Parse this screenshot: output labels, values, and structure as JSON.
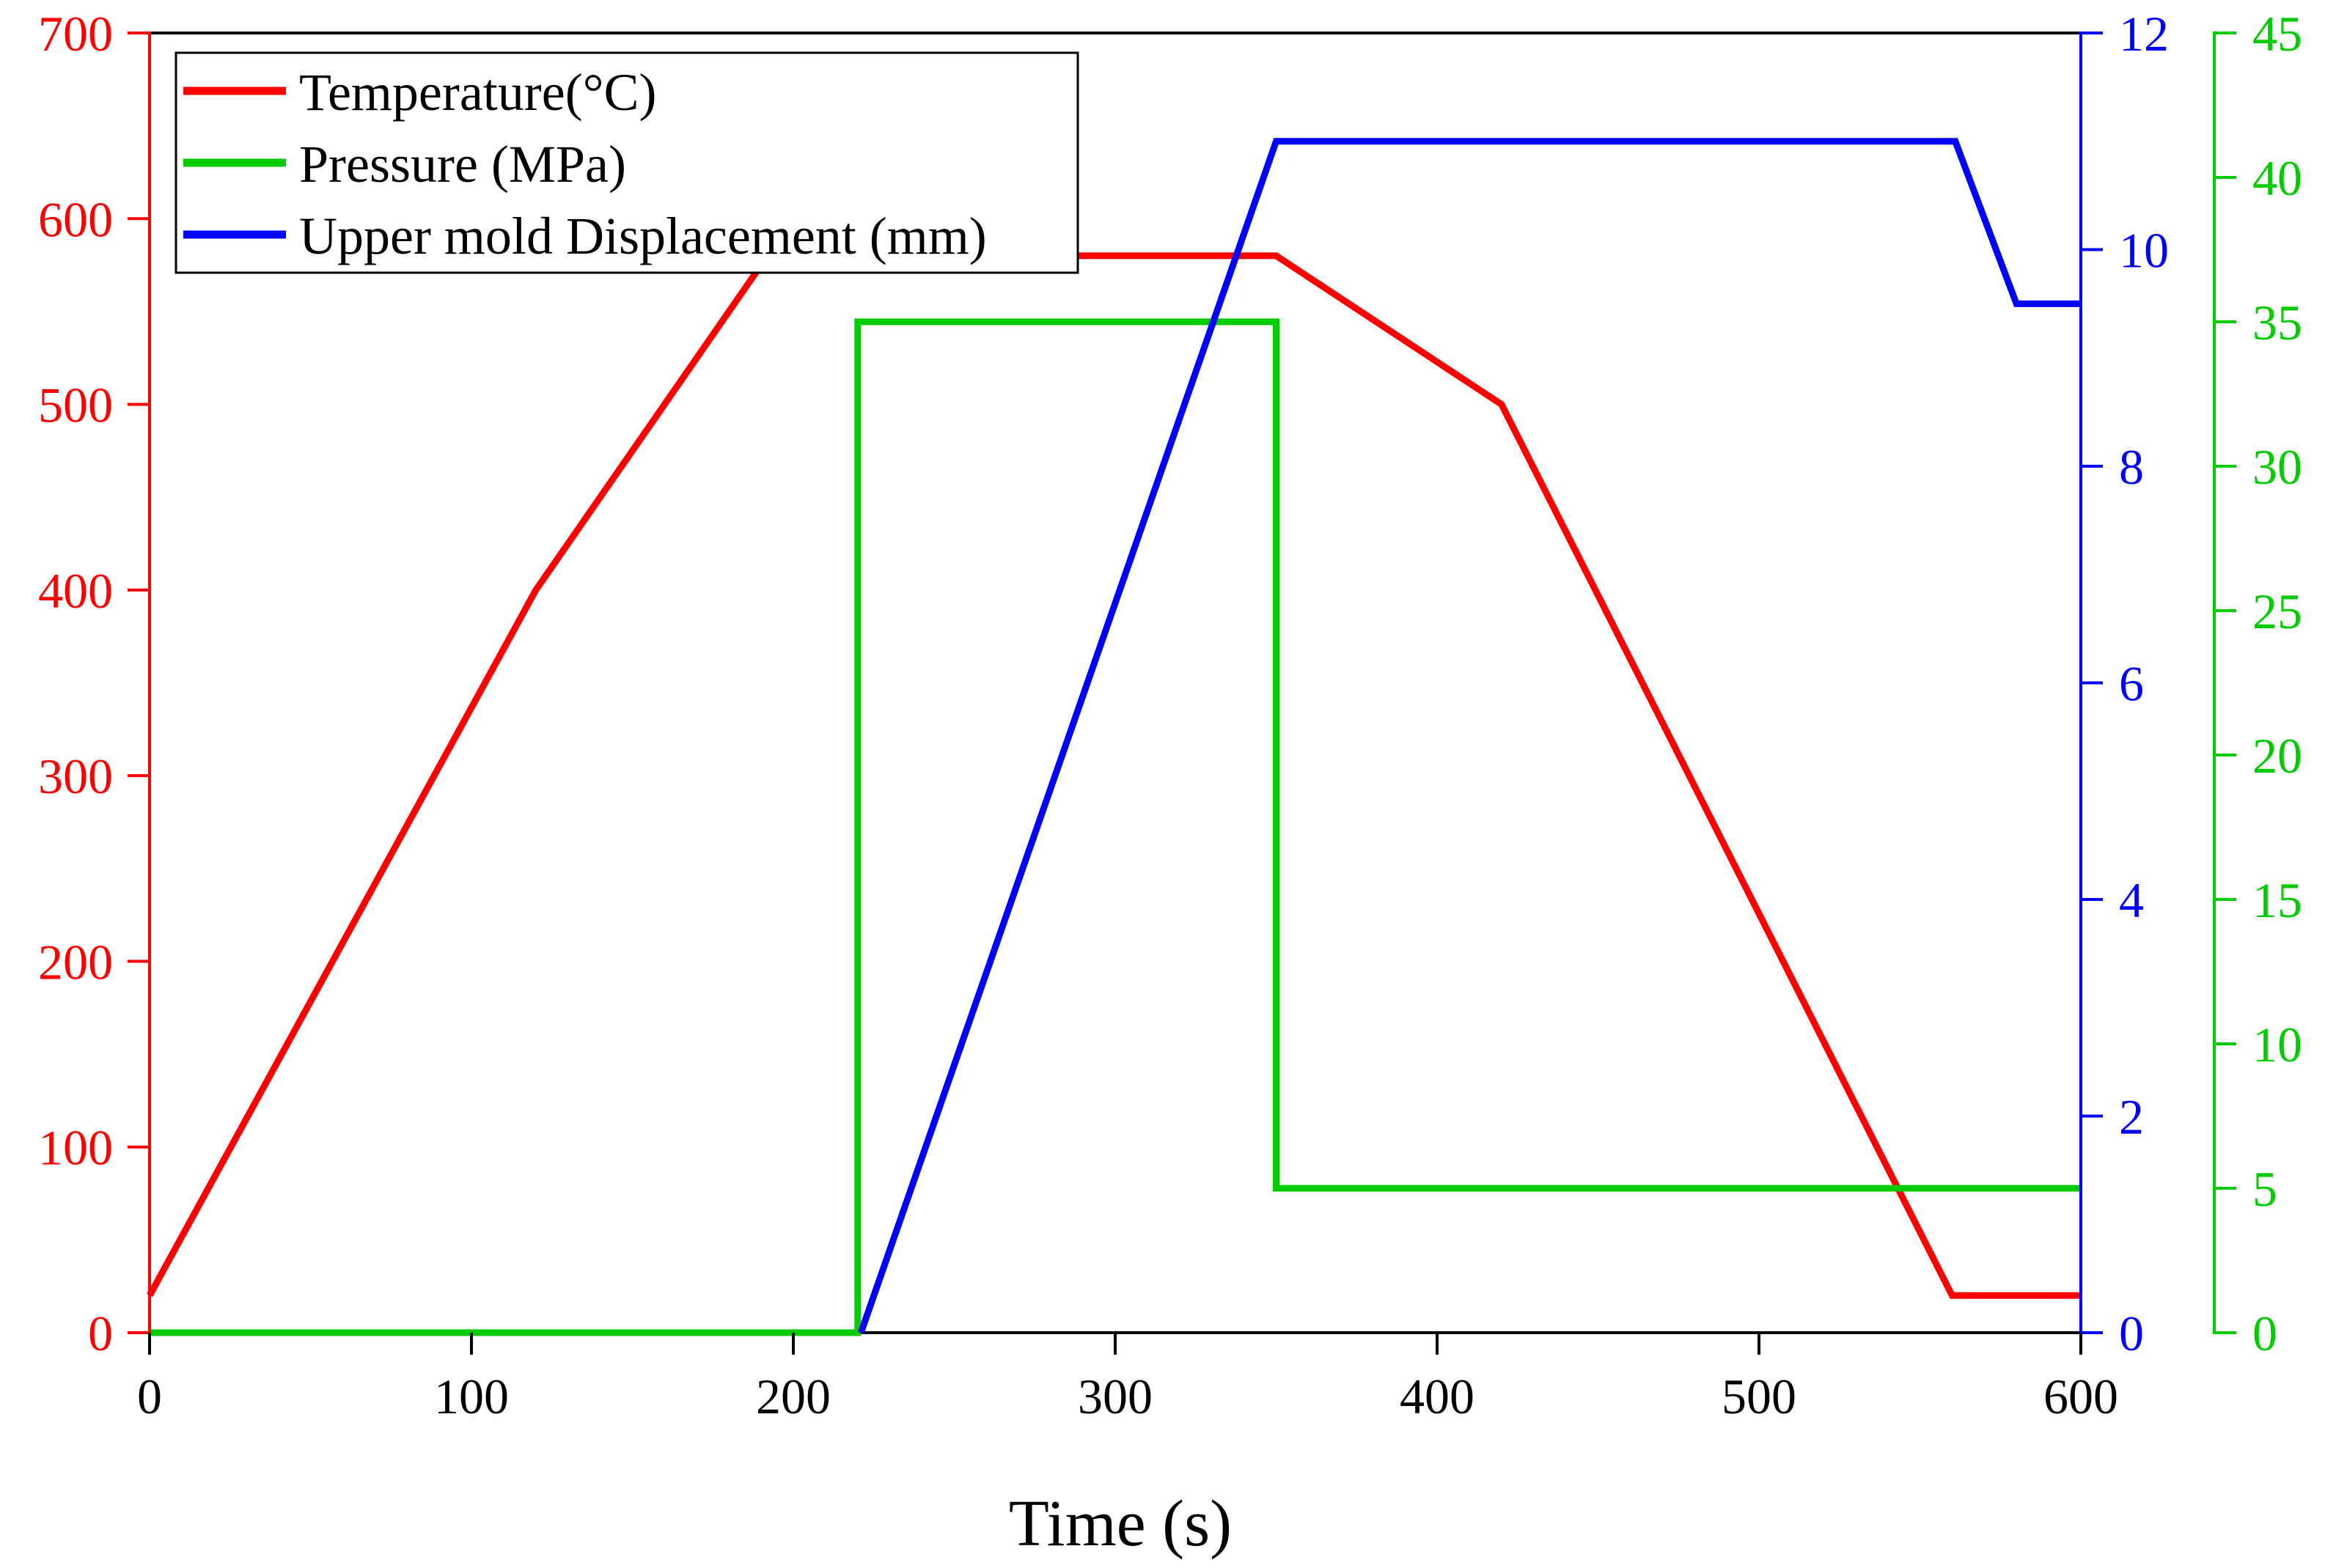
{
  "chart_data": {
    "type": "line",
    "title": "",
    "xlabel": "Time (s)",
    "xlim": [
      0,
      600
    ],
    "xticks": [
      0,
      100,
      200,
      300,
      400,
      500,
      600
    ],
    "grid": false,
    "legend_position": "top-left",
    "axes": {
      "temperature": {
        "side": "left",
        "color": "#ff0000",
        "ylim": [
          0,
          700
        ],
        "ticks": [
          0,
          100,
          200,
          300,
          400,
          500,
          600,
          700
        ]
      },
      "displacement": {
        "side": "right-inner",
        "color": "#0000ff",
        "ylim": [
          0,
          12
        ],
        "ticks": [
          0,
          2,
          4,
          6,
          8,
          10,
          12
        ]
      },
      "pressure": {
        "side": "right-outer",
        "color": "#00cc00",
        "ylim": [
          0,
          45
        ],
        "ticks": [
          0,
          5,
          10,
          15,
          20,
          25,
          30,
          35,
          40,
          45
        ]
      }
    },
    "series": [
      {
        "name": "Temperature(°C)",
        "axis": "temperature",
        "color": "#ff0000",
        "x": [
          0,
          120,
          192,
          350,
          420,
          560,
          600
        ],
        "y": [
          20,
          400,
          580,
          580,
          500,
          20,
          20
        ]
      },
      {
        "name": "Pressure (MPa)",
        "axis": "pressure",
        "color": "#00cc00",
        "x": [
          0,
          220,
          220,
          350,
          350,
          600
        ],
        "y": [
          0,
          0,
          35,
          35,
          5,
          5
        ]
      },
      {
        "name": "Upper mold Displacement (mm)",
        "axis": "displacement",
        "color": "#0000ff",
        "x": [
          221,
          350,
          561,
          580,
          600
        ],
        "y": [
          0,
          11,
          11,
          9.5,
          9.5
        ]
      }
    ]
  }
}
